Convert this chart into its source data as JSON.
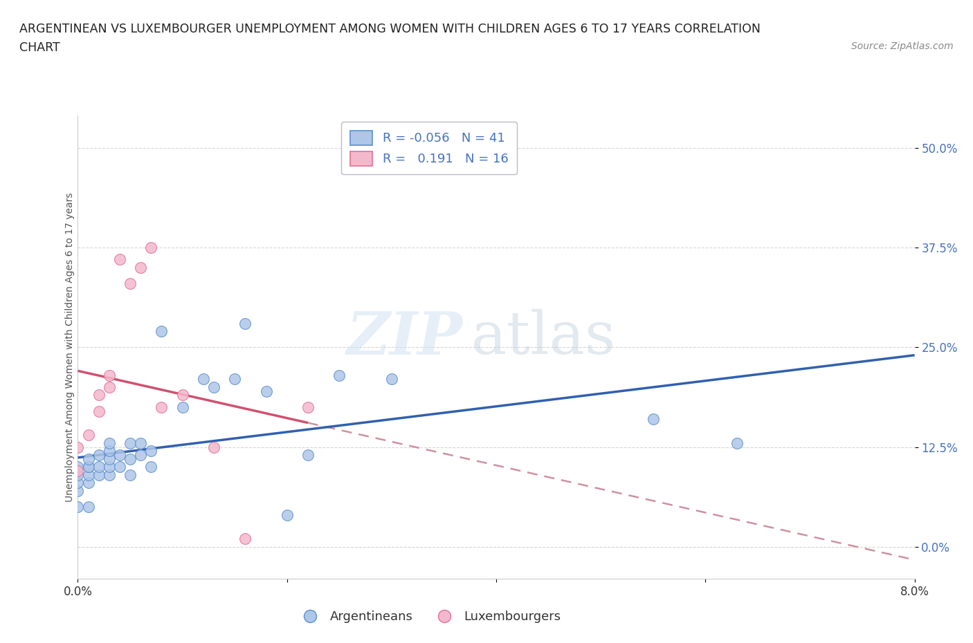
{
  "title_line1": "ARGENTINEAN VS LUXEMBOURGER UNEMPLOYMENT AMONG WOMEN WITH CHILDREN AGES 6 TO 17 YEARS CORRELATION",
  "title_line2": "CHART",
  "source_text": "Source: ZipAtlas.com",
  "ylabel": "Unemployment Among Women with Children Ages 6 to 17 years",
  "xlim": [
    0.0,
    0.08
  ],
  "ylim": [
    -0.04,
    0.54
  ],
  "yticks": [
    0.0,
    0.125,
    0.25,
    0.375,
    0.5
  ],
  "yticklabels": [
    "0.0%",
    "12.5%",
    "25.0%",
    "37.5%",
    "50.0%"
  ],
  "xticks": [
    0.0,
    0.02,
    0.04,
    0.06,
    0.08
  ],
  "xticklabels": [
    "0.0%",
    "",
    "",
    "",
    "8.0%"
  ],
  "blue_scatter_color": "#aec6e8",
  "blue_edge_color": "#5b8fcc",
  "pink_scatter_color": "#f4b8cc",
  "pink_edge_color": "#e07090",
  "blue_line_color": "#3060b0",
  "pink_line_color": "#d05070",
  "dash_color": "#d090a0",
  "r_blue": -0.056,
  "n_blue": 41,
  "r_pink": 0.191,
  "n_pink": 16,
  "background_color": "#ffffff",
  "watermark_zip": "ZIP",
  "watermark_atlas": "atlas",
  "argentinean_x": [
    0.0,
    0.0,
    0.0,
    0.0,
    0.0,
    0.001,
    0.001,
    0.001,
    0.001,
    0.001,
    0.001,
    0.002,
    0.002,
    0.002,
    0.003,
    0.003,
    0.003,
    0.003,
    0.003,
    0.004,
    0.004,
    0.005,
    0.005,
    0.005,
    0.006,
    0.006,
    0.007,
    0.007,
    0.008,
    0.01,
    0.012,
    0.013,
    0.015,
    0.016,
    0.018,
    0.02,
    0.022,
    0.025,
    0.03,
    0.055,
    0.063
  ],
  "argentinean_y": [
    0.05,
    0.07,
    0.08,
    0.09,
    0.1,
    0.05,
    0.08,
    0.09,
    0.1,
    0.1,
    0.11,
    0.09,
    0.1,
    0.115,
    0.09,
    0.1,
    0.11,
    0.12,
    0.13,
    0.1,
    0.115,
    0.09,
    0.11,
    0.13,
    0.115,
    0.13,
    0.1,
    0.12,
    0.27,
    0.175,
    0.21,
    0.2,
    0.21,
    0.28,
    0.195,
    0.04,
    0.115,
    0.215,
    0.21,
    0.16,
    0.13
  ],
  "luxembourger_x": [
    0.0,
    0.0,
    0.001,
    0.002,
    0.002,
    0.003,
    0.003,
    0.004,
    0.005,
    0.006,
    0.007,
    0.008,
    0.01,
    0.013,
    0.016,
    0.022
  ],
  "luxembourger_y": [
    0.095,
    0.125,
    0.14,
    0.17,
    0.19,
    0.2,
    0.215,
    0.36,
    0.33,
    0.35,
    0.375,
    0.175,
    0.19,
    0.125,
    0.01,
    0.175
  ]
}
